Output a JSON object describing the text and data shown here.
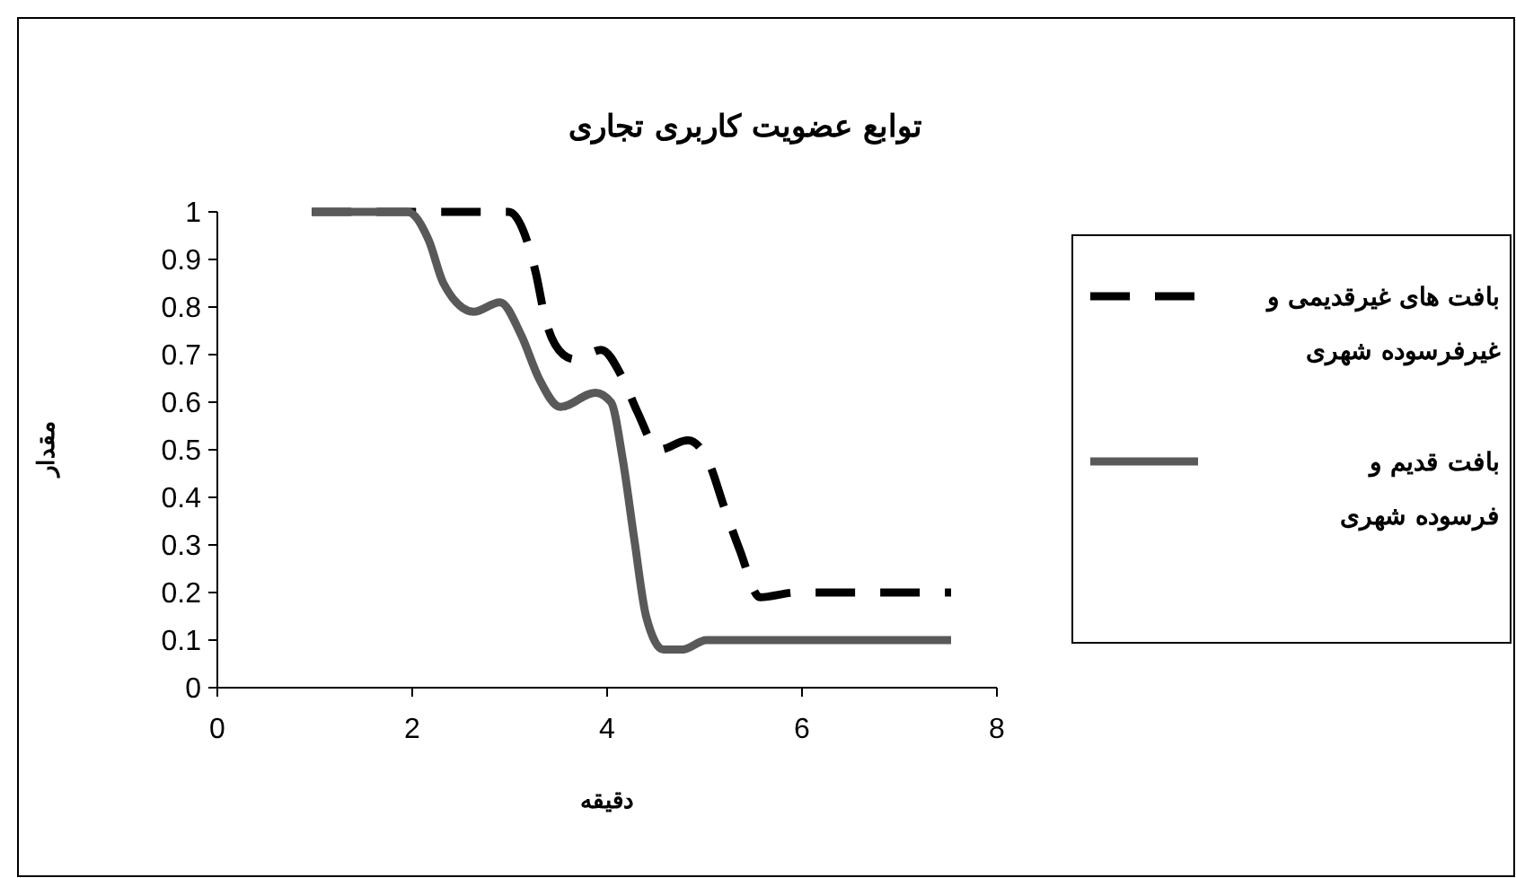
{
  "chart_data": {
    "type": "line",
    "title": "توابع عضویت کاربری تجاری",
    "xlabel": "دقیقه",
    "ylabel": "مقدار",
    "xlim": [
      0,
      8
    ],
    "xticks": [
      0,
      2,
      4,
      6,
      8
    ],
    "ylim": [
      0,
      1
    ],
    "yticks": [
      0,
      0.1,
      0.2,
      0.3,
      0.4,
      0.5,
      0.6,
      0.7,
      0.8,
      0.9,
      1
    ],
    "grid": false,
    "legend": "right",
    "marker": "none",
    "series": [
      {
        "name": "بافت های غیرقدیمی و غیرفرسوده شهری",
        "color": "#000000",
        "line_style": "dashed",
        "x": [
          0.97,
          2.63,
          2.99,
          3.27,
          3.36,
          3.55,
          3.67,
          3.94,
          4.16,
          4.31,
          4.53,
          4.83,
          5.05,
          5.2,
          5.36,
          5.57,
          5.94,
          7.53
        ],
        "values": [
          1,
          1,
          1,
          0.87,
          0.78,
          0.7,
          0.69,
          0.71,
          0.65,
          0.58,
          0.5,
          0.52,
          0.47,
          0.38,
          0.29,
          0.19,
          0.2,
          0.2
        ]
      },
      {
        "name": "بافت قدیم و  فرسوده شهری",
        "color": "#595959",
        "line_style": "solid",
        "x": [
          0.97,
          1.95,
          2.17,
          2.32,
          2.63,
          2.9,
          3.12,
          3.3,
          3.52,
          3.88,
          4.04,
          4.16,
          4.28,
          4.4,
          4.58,
          4.77,
          5.02,
          7.53
        ],
        "values": [
          1,
          1,
          0.94,
          0.85,
          0.79,
          0.81,
          0.74,
          0.65,
          0.59,
          0.62,
          0.6,
          0.48,
          0.31,
          0.15,
          0.08,
          0.08,
          0.1,
          0.1
        ]
      }
    ]
  }
}
